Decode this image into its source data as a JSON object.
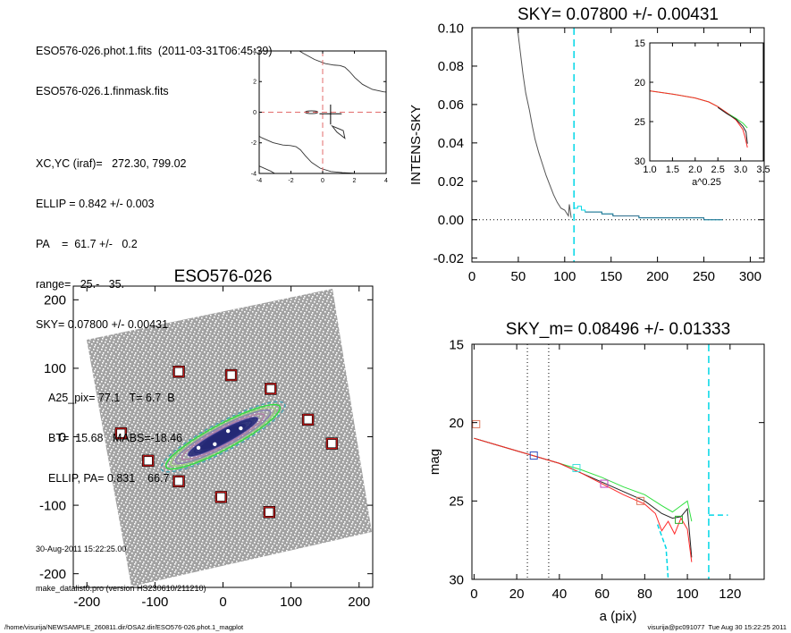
{
  "header_info": {
    "file_line": "ESO576-026.phot.1.fits  (2011-03-31T06:45:39)",
    "mask_line": "ESO576-026.1.finmask.fits",
    "xcyc": "XC,YC (iraf)=   272.30, 799.02",
    "ellip": "ELLIP = 0.842 +/- 0.003",
    "pa": "PA    =  61.7 +/-   0.2",
    "range": "range=   25.-   35.",
    "sky": "SKY= 0.07800 +/- 0.00431",
    "a25": "A25_pix= 77.1   T= 6.7  B",
    "bt": "BT=  15.68   MABS=-18.46",
    "ellip_pa": "ELLIP, PA= 0.831    66.7",
    "date": "30-Aug-2011 15:22:25.00",
    "program": "make_datalist0.pro (version HS230610/211210)"
  },
  "footer": {
    "path": "/home/visurija/NEWSAMPLE_260811.dir/OSA2.dir/ESO576-026.phot.1_magplot",
    "stamp": "visurija@pc091077  Tue Aug 30 15:22:25 2011"
  },
  "colors": {
    "dashed_red": "#e36b6b",
    "cyan": "#00d7e6",
    "green": "#30e040",
    "red": "#ff2828",
    "galaxy_core": "#1a1a60",
    "mask_box": "#c81919"
  },
  "chart_data": [
    {
      "id": "contour_panel",
      "type": "contour",
      "title": "",
      "xlim": [
        -4,
        4
      ],
      "ylim": [
        -4,
        4
      ],
      "xticks": [
        -4,
        -2,
        0,
        2,
        4
      ],
      "yticks": [
        -4,
        -2,
        0,
        2,
        4
      ]
    },
    {
      "id": "sky_profile",
      "type": "line",
      "title": "SKY= 0.07800 +/- 0.00431",
      "xlabel": "",
      "ylabel": "INTENS-SKY",
      "xlim": [
        0,
        315
      ],
      "ylim": [
        -0.022,
        0.1
      ],
      "xticks": [
        0,
        50,
        100,
        150,
        200,
        250,
        300
      ],
      "yticks": [
        -0.02,
        0.0,
        0.02,
        0.04,
        0.06,
        0.08,
        0.1
      ],
      "ytick_labels": [
        "-0.02",
        "0.00",
        "0.02",
        "0.04",
        "0.06",
        "0.08",
        "0.10"
      ],
      "vline_x": 110,
      "series": [
        {
          "color": "#555555",
          "x": [
            49,
            52,
            55,
            58,
            62,
            65,
            68,
            72,
            76,
            80,
            84,
            88,
            92,
            96,
            100,
            104,
            105,
            107
          ],
          "y": [
            0.1,
            0.088,
            0.076,
            0.066,
            0.057,
            0.049,
            0.042,
            0.035,
            0.029,
            0.023,
            0.018,
            0.013,
            0.009,
            0.006,
            0.005,
            0.002,
            0.008,
            0.001
          ]
        },
        {
          "color": "#00d7e6",
          "step": true,
          "x": [
            110,
            114,
            118,
            122,
            130,
            140,
            152,
            168,
            180,
            200,
            225,
            250,
            270
          ],
          "y": [
            0.006,
            0.007,
            0.005,
            0.004,
            0.004,
            0.003,
            0.002,
            0.002,
            0.001,
            0.001,
            0.001,
            0.0,
            0.0
          ]
        },
        {
          "color": "#2a6c8c",
          "step": true,
          "x": [
            122,
            130,
            140,
            152,
            168,
            180,
            200,
            225,
            250,
            270
          ],
          "y": [
            0.004,
            0.004,
            0.003,
            0.002,
            0.002,
            0.001,
            0.001,
            0.001,
            0.0,
            0.0
          ]
        }
      ]
    },
    {
      "id": "inset_profile",
      "type": "line",
      "title": "",
      "xlabel": "a^0.25",
      "xlim": [
        1.0,
        3.5
      ],
      "ylim": [
        30,
        15
      ],
      "xticks": [
        1.0,
        1.5,
        2.0,
        2.5,
        3.0,
        3.5
      ],
      "xtick_labels": [
        "1.0",
        "1.5",
        "2.0",
        "2.5",
        "3.0",
        "3.5"
      ],
      "yticks": [
        15,
        20,
        25,
        30
      ],
      "series": [
        {
          "color": "#30e040",
          "x": [
            1.0,
            1.5,
            2.0,
            2.3,
            2.5,
            2.7,
            2.9,
            3.05,
            3.15
          ],
          "y": [
            21.1,
            21.5,
            22.0,
            22.5,
            23.1,
            23.9,
            24.6,
            25.2,
            25.8
          ]
        },
        {
          "color": "#ff2828",
          "x": [
            1.0,
            1.5,
            2.0,
            2.3,
            2.5,
            2.7,
            2.9,
            3.05,
            3.1,
            3.15
          ],
          "y": [
            21.1,
            21.5,
            22.0,
            22.5,
            23.1,
            23.9,
            24.8,
            26.0,
            27.0,
            28.3
          ]
        },
        {
          "color": "#222222",
          "x": [
            2.5,
            2.7,
            2.9,
            3.05,
            3.12,
            3.15
          ],
          "y": [
            23.2,
            24.0,
            24.7,
            25.6,
            26.3,
            27.8
          ]
        }
      ]
    },
    {
      "id": "galaxy_image",
      "type": "image",
      "title": "ESO576-026",
      "xlim": [
        -220,
        220
      ],
      "ylim": [
        -220,
        220
      ],
      "xticks": [
        -200,
        -100,
        0,
        100,
        200
      ],
      "yticks": [
        -200,
        -100,
        0,
        100,
        200
      ],
      "mask_boxes": [
        [
          -65,
          95
        ],
        [
          12,
          90
        ],
        [
          70,
          70
        ],
        [
          125,
          25
        ],
        [
          160,
          -10
        ],
        [
          -150,
          5
        ],
        [
          -110,
          -35
        ],
        [
          -65,
          -65
        ],
        [
          -3,
          -88
        ],
        [
          68,
          -110
        ]
      ]
    },
    {
      "id": "mag_profile",
      "type": "line",
      "title": "SKY_m=  0.08496 +/- 0.01333",
      "xlabel": "a (pix)",
      "ylabel": "mag",
      "xlim": [
        -1,
        136
      ],
      "ylim": [
        30,
        15
      ],
      "xticks": [
        0,
        20,
        40,
        60,
        80,
        100,
        120
      ],
      "yticks": [
        15,
        20,
        25,
        30
      ],
      "dotted_vlines": [
        25,
        35
      ],
      "dashed_vline": 110,
      "dashed_hline": {
        "x": [
          110,
          119
        ],
        "y": 25.9
      },
      "markers": [
        {
          "x": 1,
          "y": 20.1,
          "color": "#e07a5f"
        },
        {
          "x": 28,
          "y": 22.1,
          "color": "#3050c0"
        },
        {
          "x": 48,
          "y": 22.9,
          "color": "#40e0e0"
        },
        {
          "x": 61,
          "y": 23.9,
          "color": "#c040c0"
        },
        {
          "x": 78,
          "y": 25.0,
          "color": "#e07a5f"
        },
        {
          "x": 96,
          "y": 26.2,
          "color": "#30b030"
        }
      ],
      "series": [
        {
          "color": "#30e040",
          "x": [
            0,
            10,
            20,
            30,
            40,
            50,
            60,
            70,
            80,
            88,
            93,
            97,
            100,
            102
          ],
          "y": [
            21.0,
            21.4,
            21.8,
            22.2,
            22.6,
            23.0,
            23.5,
            24.1,
            24.6,
            25.3,
            25.7,
            25.3,
            25.0,
            26.3
          ]
        },
        {
          "color": "#222222",
          "x": [
            0,
            10,
            20,
            30,
            40,
            50,
            60,
            70,
            80,
            88,
            93,
            97,
            100,
            102
          ],
          "y": [
            21.0,
            21.4,
            21.8,
            22.2,
            22.6,
            23.2,
            23.8,
            24.4,
            25.0,
            25.8,
            26.1,
            26.0,
            25.5,
            28.6
          ]
        },
        {
          "color": "#ff2828",
          "x": [
            0,
            10,
            20,
            30,
            40,
            50,
            60,
            70,
            80,
            85,
            88,
            91,
            94,
            97,
            100,
            102
          ],
          "y": [
            21.0,
            21.4,
            21.8,
            22.2,
            22.6,
            23.2,
            23.9,
            24.6,
            25.2,
            25.8,
            26.9,
            26.3,
            27.1,
            26.1,
            26.8,
            28.9
          ]
        },
        {
          "color": "#00d7e6",
          "dashed": true,
          "x": [
            86,
            90,
            91
          ],
          "y": [
            26.5,
            28.0,
            30.0
          ]
        }
      ]
    }
  ]
}
